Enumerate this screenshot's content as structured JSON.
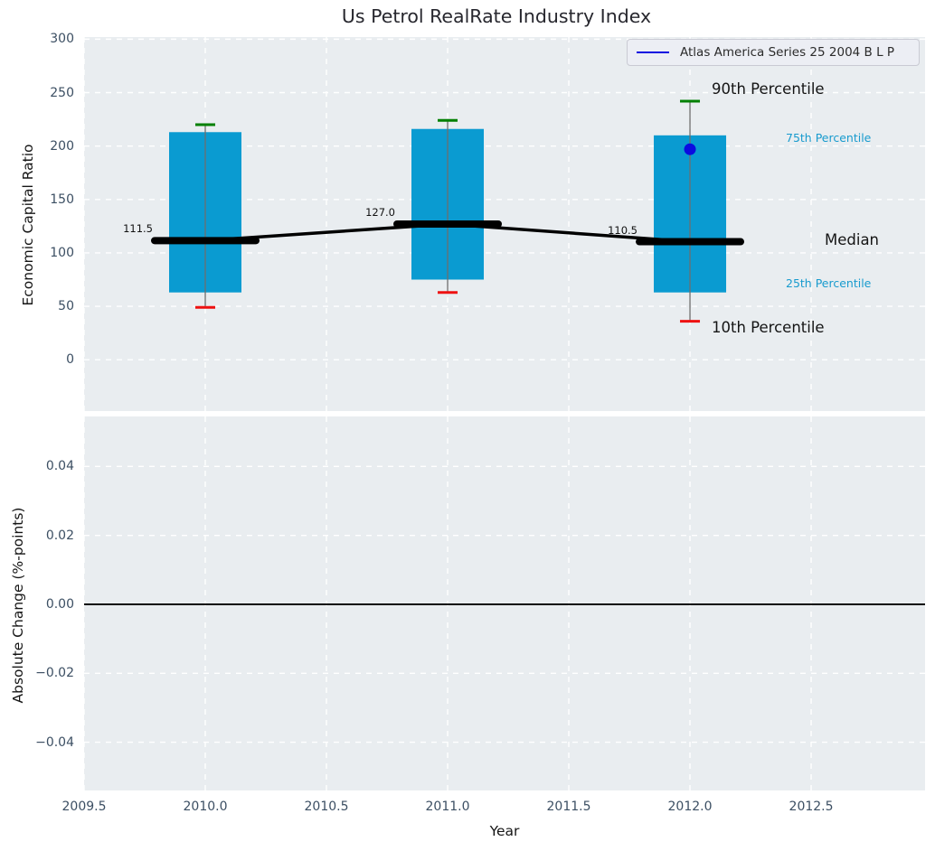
{
  "title": "Us Petrol RealRate Industry Index",
  "legend": {
    "label": "Atlas America Series 25 2004 B L P",
    "line_color": "#0b0be0"
  },
  "annotations": {
    "p90": "90th Percentile",
    "p75": "75th Percentile",
    "median": "Median",
    "p25": "25th Percentile",
    "p10": "10th Percentile"
  },
  "chart_data": [
    {
      "type": "box",
      "title": "Us Petrol RealRate Industry Index",
      "xlabel": "Year",
      "ylabel": "Economic Capital Ratio",
      "xlim": [
        2009.5,
        2012.97
      ],
      "ylim": [
        -48,
        302
      ],
      "grid": true,
      "xticks": [
        2009.5,
        2010.0,
        2010.5,
        2011.0,
        2011.5,
        2012.0,
        2012.5
      ],
      "xtick_labels": [
        "2009.5",
        "2010.0",
        "2010.5",
        "2011.0",
        "2011.5",
        "2012.0",
        "2012.5"
      ],
      "yticks": [
        300,
        250,
        200,
        150,
        100,
        50,
        0
      ],
      "ytick_labels": [
        "300",
        "250",
        "200",
        "150",
        "100",
        "50",
        "0"
      ],
      "legend_entries": [
        {
          "label": "Atlas America Series 25 2004 B L P",
          "color": "#0b0be0",
          "type": "line",
          "position": "upper right"
        }
      ],
      "boxes": [
        {
          "x": 2010,
          "p10": 49,
          "p25": 63,
          "median": 111.5,
          "p75": 213,
          "p90": 220,
          "median_label": "111.5"
        },
        {
          "x": 2011,
          "p10": 63,
          "p25": 75,
          "median": 127.0,
          "p75": 216,
          "p90": 224,
          "median_label": "127.0"
        },
        {
          "x": 2012,
          "p10": 36,
          "p25": 63,
          "median": 110.5,
          "p75": 210,
          "p90": 242,
          "median_label": "110.5"
        }
      ],
      "median_line": {
        "x": [
          2010,
          2011,
          2012
        ],
        "y": [
          111.5,
          127.0,
          110.5
        ]
      },
      "point": {
        "x": 2012,
        "y": 197,
        "series": "Atlas America Series 25 2004 B L P"
      },
      "percentile_annotations": [
        "90th Percentile",
        "75th Percentile",
        "Median",
        "25th Percentile",
        "10th Percentile"
      ],
      "colors": {
        "box_fill": "#0a9bd1",
        "p90_cap": "#008000",
        "p10_cap": "#ee1111",
        "whisker": "#6e6e6e",
        "median": "#000000",
        "point": "#0b0be0",
        "plot_background": "#e9edf0"
      }
    },
    {
      "type": "line",
      "ylabel": "Absolute Change (%-points)",
      "xlabel": "Year",
      "xlim": [
        2009.5,
        2012.97
      ],
      "ylim": [
        -0.054,
        0.0545
      ],
      "grid": true,
      "yticks": [
        0.04,
        0.02,
        0.0,
        -0.02,
        -0.04
      ],
      "ytick_labels": [
        "0.04",
        "0.02",
        "0.00",
        "−0.02",
        "−0.04"
      ],
      "zero_line_y": 0.0,
      "series": []
    }
  ]
}
